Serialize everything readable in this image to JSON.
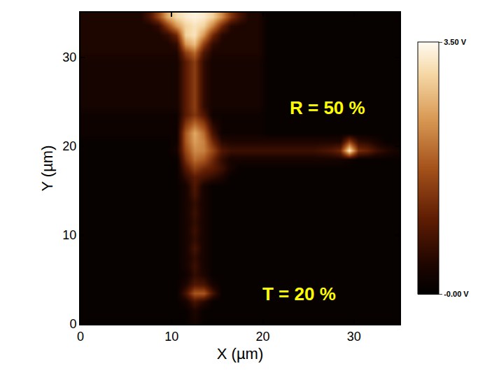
{
  "chart_data": {
    "type": "heatmap",
    "xlabel": "X (µm)",
    "ylabel": "Y (µm)",
    "xlim": [
      0,
      35
    ],
    "ylim": [
      0,
      35
    ],
    "xticks": [
      0,
      10,
      20,
      30
    ],
    "yticks": [
      0,
      10,
      20,
      30
    ],
    "grid": false,
    "colorbar": {
      "range": [
        0,
        3.5
      ],
      "ticks": [
        {
          "value": 3.5,
          "label": "3.50 V"
        },
        {
          "value": 0,
          "label": "-0.00 V"
        }
      ]
    },
    "annotations": [
      {
        "text": "R = 50 %",
        "x": 27.1,
        "y": 24.3
      },
      {
        "text": "T = 20 %",
        "x": 24.0,
        "y": 3.4
      }
    ],
    "x": [
      0.5,
      1.5,
      2.5,
      3.5,
      4.5,
      5.5,
      6.5,
      7.5,
      8.5,
      9.5,
      10.5,
      11.5,
      12.5,
      13.5,
      14.5,
      15.5,
      16.5,
      17.5,
      18.5,
      19.5,
      20.5,
      21.5,
      22.5,
      23.5,
      24.5,
      25.5,
      26.5,
      27.5,
      28.5,
      29.5,
      30.5,
      31.5,
      32.5,
      33.5,
      34.5
    ],
    "y": [
      0.5,
      1.5,
      2.5,
      3.5,
      4.5,
      5.5,
      6.5,
      7.5,
      8.5,
      9.5,
      10.5,
      11.5,
      12.5,
      13.5,
      14.5,
      15.5,
      16.5,
      17.5,
      18.5,
      19.5,
      20.5,
      21.5,
      22.5,
      23.5,
      24.5,
      25.5,
      26.5,
      27.5,
      28.5,
      29.5,
      30.5,
      31.5,
      32.5,
      33.5,
      34.5
    ],
    "z": [
      [
        0.1,
        0.1,
        0.1,
        0.1,
        0.1,
        0.1,
        0.1,
        0.1,
        0.1,
        0.1,
        0.1,
        0.1,
        0.3,
        0.1,
        0.1,
        0.1,
        0.1,
        0.1,
        0.1,
        0.1,
        0.1,
        0.1,
        0.1,
        0.1,
        0.1,
        0.1,
        0.1,
        0.1,
        0.1,
        0.1,
        0.1,
        0.1,
        0.1,
        0.1,
        0.1
      ],
      [
        0.1,
        0.1,
        0.1,
        0.1,
        0.1,
        0.1,
        0.1,
        0.1,
        0.1,
        0.1,
        0.1,
        0.1,
        0.4,
        0.1,
        0.1,
        0.1,
        0.1,
        0.1,
        0.1,
        0.1,
        0.1,
        0.1,
        0.1,
        0.1,
        0.1,
        0.1,
        0.1,
        0.1,
        0.1,
        0.1,
        0.1,
        0.1,
        0.1,
        0.1,
        0.1
      ],
      [
        0.1,
        0.1,
        0.1,
        0.1,
        0.1,
        0.1,
        0.1,
        0.1,
        0.1,
        0.1,
        0.1,
        0.3,
        0.8,
        0.5,
        0.1,
        0.1,
        0.1,
        0.1,
        0.1,
        0.1,
        0.1,
        0.1,
        0.1,
        0.1,
        0.1,
        0.1,
        0.1,
        0.1,
        0.1,
        0.1,
        0.1,
        0.1,
        0.1,
        0.1,
        0.1
      ],
      [
        0.1,
        0.1,
        0.1,
        0.1,
        0.1,
        0.1,
        0.1,
        0.1,
        0.1,
        0.1,
        0.1,
        0.8,
        1.8,
        1.8,
        0.8,
        0.1,
        0.1,
        0.1,
        0.1,
        0.1,
        0.1,
        0.1,
        0.1,
        0.1,
        0.1,
        0.1,
        0.1,
        0.1,
        0.1,
        0.1,
        0.1,
        0.1,
        0.1,
        0.1,
        0.1
      ],
      [
        0.1,
        0.1,
        0.1,
        0.1,
        0.1,
        0.1,
        0.1,
        0.1,
        0.1,
        0.1,
        0.1,
        0.4,
        0.9,
        0.8,
        0.3,
        0.1,
        0.1,
        0.1,
        0.1,
        0.1,
        0.1,
        0.1,
        0.1,
        0.1,
        0.1,
        0.1,
        0.1,
        0.1,
        0.1,
        0.1,
        0.1,
        0.1,
        0.1,
        0.1,
        0.1
      ],
      [
        0.1,
        0.1,
        0.1,
        0.1,
        0.1,
        0.1,
        0.1,
        0.1,
        0.1,
        0.1,
        0.1,
        0.2,
        0.6,
        0.4,
        0.1,
        0.1,
        0.1,
        0.1,
        0.1,
        0.1,
        0.1,
        0.1,
        0.1,
        0.1,
        0.1,
        0.1,
        0.1,
        0.1,
        0.1,
        0.1,
        0.1,
        0.1,
        0.1,
        0.1,
        0.1
      ],
      [
        0.1,
        0.1,
        0.1,
        0.1,
        0.1,
        0.1,
        0.1,
        0.1,
        0.1,
        0.1,
        0.1,
        0.3,
        0.7,
        0.3,
        0.1,
        0.1,
        0.1,
        0.1,
        0.1,
        0.1,
        0.1,
        0.1,
        0.1,
        0.1,
        0.1,
        0.1,
        0.1,
        0.1,
        0.1,
        0.1,
        0.1,
        0.1,
        0.1,
        0.1,
        0.1
      ],
      [
        0.1,
        0.1,
        0.1,
        0.1,
        0.1,
        0.1,
        0.1,
        0.1,
        0.1,
        0.1,
        0.1,
        0.3,
        0.6,
        0.3,
        0.1,
        0.1,
        0.1,
        0.1,
        0.1,
        0.1,
        0.1,
        0.1,
        0.1,
        0.1,
        0.1,
        0.1,
        0.1,
        0.1,
        0.1,
        0.1,
        0.1,
        0.1,
        0.1,
        0.1,
        0.1
      ],
      [
        0.1,
        0.1,
        0.1,
        0.1,
        0.1,
        0.1,
        0.1,
        0.1,
        0.1,
        0.1,
        0.1,
        0.3,
        0.8,
        0.3,
        0.1,
        0.1,
        0.1,
        0.1,
        0.1,
        0.1,
        0.1,
        0.1,
        0.1,
        0.1,
        0.1,
        0.1,
        0.1,
        0.1,
        0.1,
        0.1,
        0.1,
        0.1,
        0.1,
        0.1,
        0.1
      ],
      [
        0.1,
        0.1,
        0.1,
        0.1,
        0.1,
        0.1,
        0.1,
        0.1,
        0.1,
        0.1,
        0.1,
        0.3,
        0.6,
        0.3,
        0.1,
        0.1,
        0.1,
        0.1,
        0.1,
        0.1,
        0.1,
        0.1,
        0.1,
        0.1,
        0.1,
        0.1,
        0.1,
        0.1,
        0.1,
        0.1,
        0.1,
        0.1,
        0.1,
        0.1,
        0.1
      ],
      [
        0.1,
        0.1,
        0.1,
        0.1,
        0.1,
        0.1,
        0.1,
        0.1,
        0.1,
        0.1,
        0.1,
        0.3,
        0.7,
        0.3,
        0.1,
        0.1,
        0.1,
        0.1,
        0.1,
        0.1,
        0.1,
        0.1,
        0.1,
        0.1,
        0.1,
        0.1,
        0.1,
        0.1,
        0.1,
        0.1,
        0.1,
        0.1,
        0.1,
        0.1,
        0.1
      ],
      [
        0.1,
        0.1,
        0.1,
        0.1,
        0.1,
        0.1,
        0.1,
        0.1,
        0.1,
        0.1,
        0.1,
        0.3,
        0.6,
        0.3,
        0.1,
        0.1,
        0.1,
        0.1,
        0.1,
        0.1,
        0.1,
        0.1,
        0.1,
        0.1,
        0.1,
        0.1,
        0.1,
        0.1,
        0.1,
        0.1,
        0.1,
        0.1,
        0.1,
        0.1,
        0.1
      ],
      [
        0.1,
        0.1,
        0.1,
        0.1,
        0.1,
        0.1,
        0.1,
        0.1,
        0.1,
        0.1,
        0.1,
        0.3,
        0.7,
        0.3,
        0.1,
        0.1,
        0.1,
        0.1,
        0.1,
        0.1,
        0.1,
        0.1,
        0.1,
        0.1,
        0.1,
        0.1,
        0.1,
        0.1,
        0.1,
        0.1,
        0.1,
        0.1,
        0.1,
        0.1,
        0.1
      ],
      [
        0.1,
        0.1,
        0.1,
        0.1,
        0.1,
        0.1,
        0.1,
        0.1,
        0.1,
        0.1,
        0.1,
        0.3,
        0.6,
        0.3,
        0.1,
        0.1,
        0.1,
        0.1,
        0.1,
        0.1,
        0.1,
        0.1,
        0.1,
        0.1,
        0.1,
        0.1,
        0.1,
        0.1,
        0.1,
        0.1,
        0.1,
        0.1,
        0.1,
        0.1,
        0.1
      ],
      [
        0.1,
        0.1,
        0.1,
        0.1,
        0.1,
        0.1,
        0.1,
        0.1,
        0.1,
        0.1,
        0.1,
        0.3,
        0.8,
        0.3,
        0.1,
        0.1,
        0.1,
        0.1,
        0.1,
        0.1,
        0.1,
        0.1,
        0.1,
        0.1,
        0.1,
        0.1,
        0.1,
        0.1,
        0.1,
        0.1,
        0.1,
        0.1,
        0.1,
        0.1,
        0.1
      ],
      [
        0.1,
        0.1,
        0.1,
        0.1,
        0.1,
        0.1,
        0.1,
        0.1,
        0.1,
        0.1,
        0.1,
        0.3,
        0.9,
        0.3,
        0.1,
        0.1,
        0.1,
        0.1,
        0.1,
        0.1,
        0.1,
        0.1,
        0.1,
        0.1,
        0.1,
        0.1,
        0.1,
        0.1,
        0.1,
        0.1,
        0.1,
        0.1,
        0.1,
        0.1,
        0.1
      ],
      [
        0.1,
        0.1,
        0.1,
        0.1,
        0.1,
        0.1,
        0.1,
        0.1,
        0.1,
        0.1,
        0.1,
        0.6,
        1.0,
        0.8,
        0.6,
        0.4,
        0.1,
        0.1,
        0.1,
        0.1,
        0.1,
        0.1,
        0.1,
        0.1,
        0.1,
        0.1,
        0.1,
        0.1,
        0.1,
        0.1,
        0.1,
        0.1,
        0.1,
        0.1,
        0.1
      ],
      [
        0.1,
        0.1,
        0.1,
        0.1,
        0.1,
        0.1,
        0.1,
        0.1,
        0.1,
        0.1,
        0.1,
        0.9,
        1.5,
        1.2,
        1.0,
        0.7,
        0.3,
        0.1,
        0.1,
        0.1,
        0.1,
        0.1,
        0.1,
        0.1,
        0.1,
        0.1,
        0.1,
        0.1,
        0.1,
        0.1,
        0.1,
        0.1,
        0.1,
        0.1,
        0.1
      ],
      [
        0.1,
        0.1,
        0.1,
        0.1,
        0.1,
        0.1,
        0.1,
        0.1,
        0.1,
        0.1,
        0.1,
        1.3,
        2.0,
        1.8,
        1.2,
        0.6,
        0.3,
        0.3,
        0.3,
        0.3,
        0.3,
        0.3,
        0.3,
        0.3,
        0.3,
        0.3,
        0.3,
        0.3,
        0.3,
        0.2,
        0.1,
        0.1,
        0.1,
        0.1,
        0.1
      ],
      [
        0.1,
        0.1,
        0.1,
        0.1,
        0.1,
        0.1,
        0.1,
        0.1,
        0.1,
        0.1,
        0.3,
        1.6,
        2.3,
        2.2,
        1.6,
        0.9,
        0.7,
        0.7,
        0.7,
        0.7,
        0.7,
        0.7,
        0.7,
        0.7,
        0.7,
        0.7,
        0.8,
        0.9,
        1.2,
        3.3,
        1.3,
        1.1,
        0.7,
        0.5,
        0.3
      ],
      [
        0.1,
        0.1,
        0.1,
        0.1,
        0.1,
        0.1,
        0.1,
        0.1,
        0.1,
        0.1,
        0.2,
        1.8,
        2.5,
        2.2,
        1.2,
        0.5,
        0.4,
        0.4,
        0.4,
        0.4,
        0.4,
        0.4,
        0.4,
        0.4,
        0.4,
        0.4,
        0.4,
        0.4,
        0.4,
        1.5,
        0.6,
        0.5,
        0.3,
        0.1,
        0.1
      ],
      [
        0.2,
        0.2,
        0.2,
        0.2,
        0.2,
        0.2,
        0.2,
        0.2,
        0.2,
        0.2,
        0.2,
        1.8,
        2.6,
        2.0,
        0.8,
        0.2,
        0.2,
        0.2,
        0.2,
        0.2,
        0.1,
        0.1,
        0.1,
        0.1,
        0.1,
        0.1,
        0.1,
        0.1,
        0.1,
        0.1,
        0.1,
        0.1,
        0.1,
        0.1,
        0.1
      ],
      [
        0.2,
        0.2,
        0.2,
        0.2,
        0.2,
        0.2,
        0.2,
        0.2,
        0.2,
        0.2,
        0.2,
        1.4,
        2.0,
        1.5,
        0.5,
        0.2,
        0.2,
        0.2,
        0.2,
        0.2,
        0.1,
        0.1,
        0.1,
        0.1,
        0.1,
        0.1,
        0.1,
        0.1,
        0.1,
        0.1,
        0.1,
        0.1,
        0.1,
        0.1,
        0.1
      ],
      [
        0.2,
        0.2,
        0.2,
        0.2,
        0.2,
        0.2,
        0.2,
        0.2,
        0.2,
        0.2,
        0.2,
        1.0,
        1.4,
        0.9,
        0.2,
        0.2,
        0.2,
        0.2,
        0.2,
        0.2,
        0.1,
        0.1,
        0.1,
        0.1,
        0.1,
        0.1,
        0.1,
        0.1,
        0.1,
        0.1,
        0.1,
        0.1,
        0.1,
        0.1,
        0.1
      ],
      [
        0.3,
        0.3,
        0.3,
        0.3,
        0.3,
        0.3,
        0.3,
        0.3,
        0.3,
        0.3,
        0.3,
        1.0,
        1.5,
        0.6,
        0.3,
        0.3,
        0.3,
        0.3,
        0.3,
        0.3,
        0.1,
        0.1,
        0.1,
        0.1,
        0.1,
        0.1,
        0.1,
        0.1,
        0.1,
        0.1,
        0.1,
        0.1,
        0.1,
        0.1,
        0.1
      ],
      [
        0.3,
        0.3,
        0.3,
        0.3,
        0.3,
        0.3,
        0.3,
        0.3,
        0.3,
        0.3,
        0.3,
        1.0,
        1.5,
        0.6,
        0.3,
        0.3,
        0.3,
        0.3,
        0.3,
        0.3,
        0.1,
        0.1,
        0.1,
        0.1,
        0.1,
        0.1,
        0.1,
        0.1,
        0.1,
        0.1,
        0.1,
        0.1,
        0.1,
        0.1,
        0.1
      ],
      [
        0.3,
        0.3,
        0.3,
        0.3,
        0.3,
        0.3,
        0.3,
        0.3,
        0.3,
        0.3,
        0.3,
        1.0,
        1.5,
        0.6,
        0.3,
        0.3,
        0.3,
        0.3,
        0.3,
        0.3,
        0.1,
        0.1,
        0.1,
        0.1,
        0.1,
        0.1,
        0.1,
        0.1,
        0.1,
        0.1,
        0.1,
        0.1,
        0.1,
        0.1,
        0.1
      ],
      [
        0.3,
        0.3,
        0.3,
        0.3,
        0.3,
        0.3,
        0.3,
        0.3,
        0.3,
        0.3,
        0.3,
        1.0,
        1.5,
        0.6,
        0.3,
        0.3,
        0.3,
        0.3,
        0.3,
        0.3,
        0.1,
        0.1,
        0.1,
        0.1,
        0.1,
        0.1,
        0.1,
        0.1,
        0.1,
        0.1,
        0.1,
        0.1,
        0.1,
        0.1,
        0.1
      ],
      [
        0.3,
        0.3,
        0.3,
        0.3,
        0.3,
        0.3,
        0.3,
        0.3,
        0.3,
        0.3,
        0.3,
        1.0,
        1.5,
        0.6,
        0.3,
        0.3,
        0.3,
        0.3,
        0.3,
        0.3,
        0.1,
        0.1,
        0.1,
        0.1,
        0.1,
        0.1,
        0.1,
        0.1,
        0.1,
        0.1,
        0.1,
        0.1,
        0.1,
        0.1,
        0.1
      ],
      [
        0.3,
        0.3,
        0.3,
        0.3,
        0.3,
        0.3,
        0.3,
        0.3,
        0.3,
        0.3,
        0.3,
        1.0,
        1.5,
        0.6,
        0.3,
        0.3,
        0.3,
        0.3,
        0.3,
        0.3,
        0.1,
        0.1,
        0.1,
        0.1,
        0.1,
        0.1,
        0.1,
        0.1,
        0.1,
        0.1,
        0.1,
        0.1,
        0.1,
        0.1,
        0.1
      ],
      [
        0.4,
        0.4,
        0.4,
        0.4,
        0.4,
        0.4,
        0.4,
        0.4,
        0.4,
        0.4,
        0.4,
        1.5,
        2.0,
        0.9,
        0.4,
        0.4,
        0.4,
        0.4,
        0.4,
        0.4,
        0.1,
        0.1,
        0.1,
        0.1,
        0.1,
        0.1,
        0.1,
        0.1,
        0.1,
        0.1,
        0.1,
        0.1,
        0.1,
        0.1,
        0.1
      ],
      [
        0.4,
        0.4,
        0.4,
        0.4,
        0.4,
        0.4,
        0.4,
        0.4,
        0.4,
        0.4,
        0.6,
        2.4,
        2.8,
        1.5,
        0.6,
        0.4,
        0.4,
        0.4,
        0.4,
        0.4,
        0.1,
        0.1,
        0.1,
        0.1,
        0.1,
        0.1,
        0.1,
        0.1,
        0.1,
        0.1,
        0.1,
        0.1,
        0.1,
        0.1,
        0.1
      ],
      [
        0.4,
        0.4,
        0.4,
        0.4,
        0.4,
        0.4,
        0.4,
        0.4,
        0.4,
        0.6,
        1.2,
        3.0,
        3.2,
        2.4,
        1.2,
        0.5,
        0.4,
        0.4,
        0.4,
        0.4,
        0.1,
        0.1,
        0.1,
        0.1,
        0.1,
        0.1,
        0.1,
        0.1,
        0.1,
        0.1,
        0.1,
        0.1,
        0.1,
        0.1,
        0.1
      ],
      [
        0.4,
        0.4,
        0.4,
        0.4,
        0.4,
        0.4,
        0.4,
        0.4,
        0.6,
        1.5,
        2.4,
        3.0,
        3.2,
        3.0,
        2.2,
        1.2,
        0.5,
        0.4,
        0.4,
        0.4,
        0.1,
        0.1,
        0.1,
        0.1,
        0.1,
        0.1,
        0.1,
        0.1,
        0.1,
        0.1,
        0.1,
        0.1,
        0.1,
        0.1,
        0.1
      ],
      [
        0.4,
        0.4,
        0.4,
        0.4,
        0.4,
        0.4,
        0.4,
        0.8,
        1.6,
        2.6,
        3.1,
        3.3,
        3.4,
        3.3,
        3.0,
        2.3,
        1.4,
        0.8,
        0.4,
        0.4,
        0.1,
        0.1,
        0.1,
        0.1,
        0.1,
        0.1,
        0.1,
        0.1,
        0.1,
        0.1,
        0.1,
        0.1,
        0.1,
        0.1,
        0.1
      ]
    ]
  }
}
